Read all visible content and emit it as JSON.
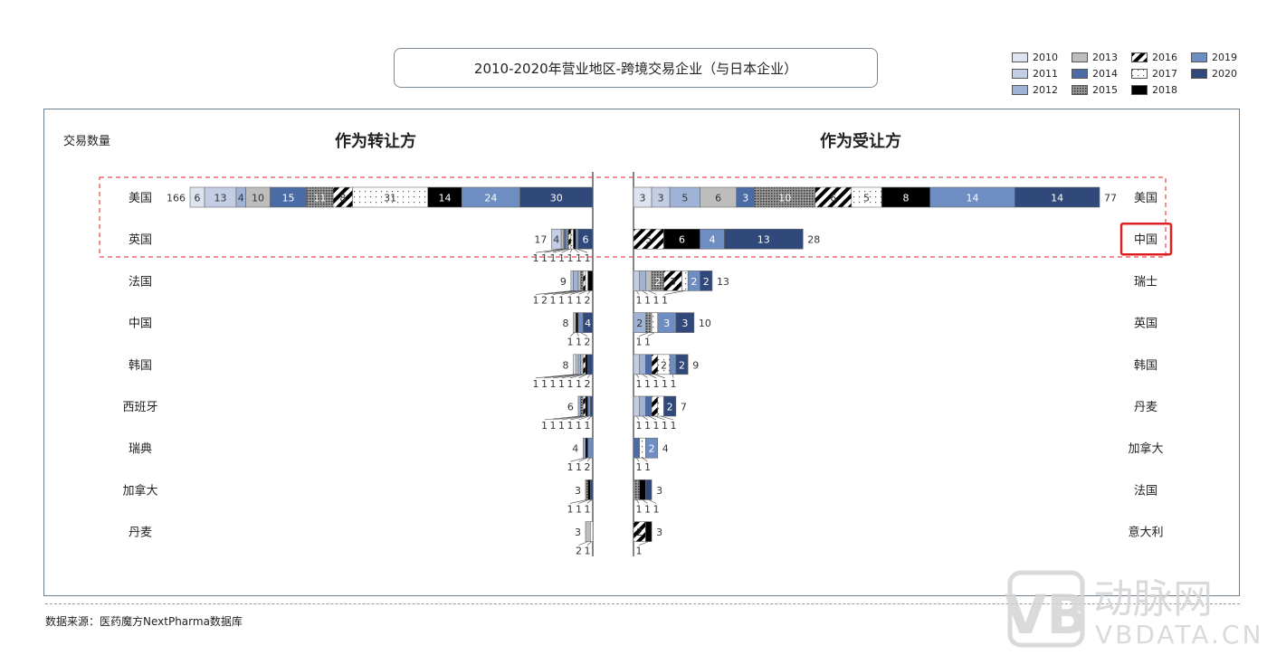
{
  "chart_data": {
    "type": "bar",
    "orientation": "horizontal-stacked-butterfly",
    "title": "2010-2020年营业地区-跨境交易企业（与日本企业）",
    "ylabel": "交易数量",
    "years": [
      "2010",
      "2011",
      "2012",
      "2013",
      "2014",
      "2015",
      "2016",
      "2017",
      "2018",
      "2019",
      "2020"
    ],
    "year_styles": {
      "2010": {
        "color": "#dde3ef",
        "pattern": "solid"
      },
      "2011": {
        "color": "#c3cde3",
        "pattern": "solid"
      },
      "2012": {
        "color": "#9fb3d6",
        "pattern": "solid"
      },
      "2013": {
        "color": "#bdbdbd",
        "pattern": "solid"
      },
      "2014": {
        "color": "#4b6ba6",
        "pattern": "solid"
      },
      "2015": {
        "color": "#555555",
        "pattern": "dense-dots"
      },
      "2016": {
        "color": "#000000",
        "pattern": "diagonal-stripes"
      },
      "2017": {
        "color": "#ffffff",
        "pattern": "sparse-dots"
      },
      "2018": {
        "color": "#000000",
        "pattern": "solid"
      },
      "2019": {
        "color": "#6e8dc2",
        "pattern": "solid"
      },
      "2020": {
        "color": "#30497a",
        "pattern": "solid"
      }
    },
    "legend_position": "top-right",
    "panels": [
      {
        "heading": "作为转让方",
        "rows": [
          {
            "country": "美国",
            "total": 166,
            "values": {
              "2010": 6,
              "2011": 13,
              "2012": 4,
              "2013": 10,
              "2014": 15,
              "2015": 11,
              "2016": 8,
              "2017": 31,
              "2018": 14,
              "2019": 24,
              "2020": 30
            }
          },
          {
            "country": "英国",
            "total": 17,
            "values": {
              "2011": 4,
              "2013": 1,
              "2014": 1,
              "2015": 1,
              "2016": 1,
              "2017": 1,
              "2018": 1,
              "2019": 1,
              "2020": 6
            }
          },
          {
            "country": "法国",
            "total": 9,
            "values": {
              "2011": 1,
              "2012": 2,
              "2013": 1,
              "2015": 1,
              "2016": 1,
              "2017": 1,
              "2018": 2
            }
          },
          {
            "country": "中国",
            "total": 8,
            "values": {
              "2013": 1,
              "2018": 1,
              "2019": 2,
              "2020": 4
            }
          },
          {
            "country": "韩国",
            "total": 8,
            "values": {
              "2010": 1,
              "2011": 1,
              "2012": 1,
              "2013": 1,
              "2016": 1,
              "2018": 1,
              "2020": 2
            }
          },
          {
            "country": "西班牙",
            "total": 6,
            "values": {
              "2012": 1,
              "2015": 1,
              "2016": 1,
              "2018": 1,
              "2019": 1,
              "2020": 1
            }
          },
          {
            "country": "瑞典",
            "total": 4,
            "values": {
              "2012": 1,
              "2018": 1,
              "2019": 2
            }
          },
          {
            "country": "加拿大",
            "total": 3,
            "values": {
              "2015": 1,
              "2018": 1,
              "2020": 1
            }
          },
          {
            "country": "丹麦",
            "total": 3,
            "values": {
              "2013": 2,
              "2017": 1
            }
          }
        ]
      },
      {
        "heading": "作为受让方",
        "rows": [
          {
            "country": "美国",
            "total": 77,
            "values": {
              "2010": 3,
              "2011": 3,
              "2012": 5,
              "2013": 6,
              "2014": 3,
              "2015": 10,
              "2016": 6,
              "2017": 5,
              "2018": 8,
              "2019": 14,
              "2020": 14
            }
          },
          {
            "country": "中国",
            "total": 28,
            "highlighted": true,
            "values": {
              "2016": 5,
              "2018": 6,
              "2019": 4,
              "2020": 13
            }
          },
          {
            "country": "瑞士",
            "total": 13,
            "values": {
              "2011": 1,
              "2012": 1,
              "2013": 1,
              "2015": 2,
              "2016": 3,
              "2017": 1,
              "2019": 2,
              "2020": 2
            }
          },
          {
            "country": "英国",
            "total": 10,
            "values": {
              "2012": 2,
              "2015": 1,
              "2017": 1,
              "2019": 3,
              "2020": 3
            }
          },
          {
            "country": "韩国",
            "total": 9,
            "values": {
              "2011": 1,
              "2012": 1,
              "2014": 1,
              "2016": 1,
              "2017": 2,
              "2019": 1,
              "2020": 2
            }
          },
          {
            "country": "丹麦",
            "total": 7,
            "values": {
              "2011": 1,
              "2012": 1,
              "2014": 1,
              "2016": 1,
              "2017": 1,
              "2020": 2
            }
          },
          {
            "country": "加拿大",
            "total": 4,
            "values": {
              "2014": 1,
              "2017": 1,
              "2019": 2
            }
          },
          {
            "country": "法国",
            "total": 3,
            "values": {
              "2015": 1,
              "2018": 1,
              "2020": 1
            }
          },
          {
            "country": "意大利",
            "total": 3,
            "values": {
              "2016": 2,
              "2018": 1
            }
          }
        ]
      }
    ]
  },
  "footer": {
    "source": "数据来源：医药魔方NextPharma数据库"
  },
  "watermark": {
    "text_cn": "动脉网",
    "text_en": "VBDATA.CN",
    "logo": "VB"
  },
  "colors": {
    "highlight": "#e02020",
    "frame": "#6e7f8f"
  }
}
